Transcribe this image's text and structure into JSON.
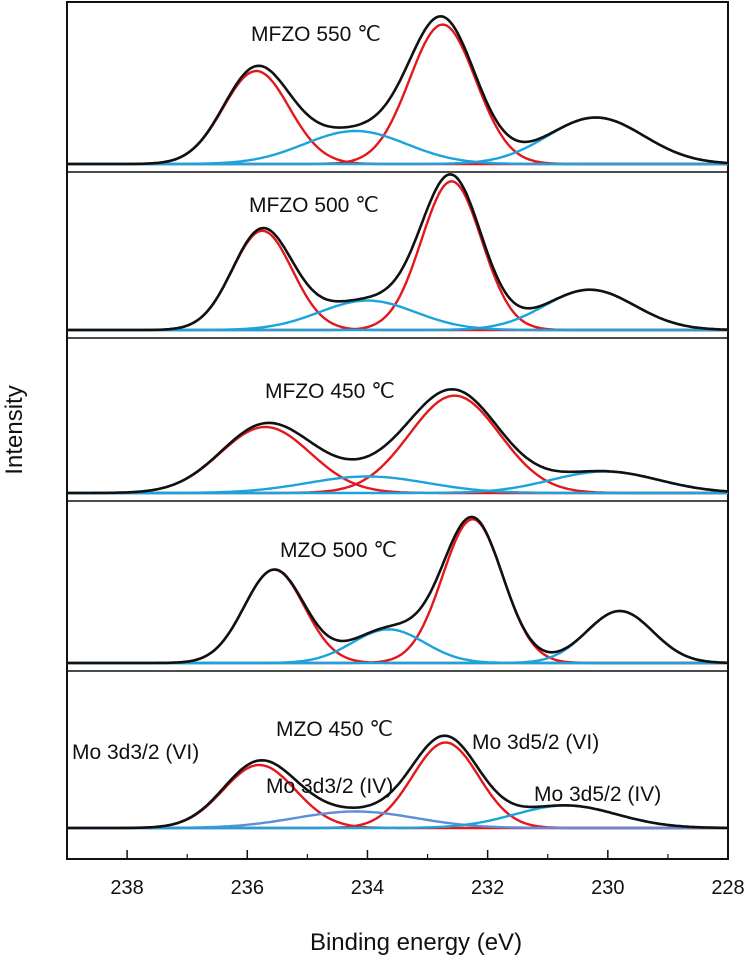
{
  "chart_data": {
    "type": "line",
    "title": "",
    "xlabel": "Binding energy (eV)",
    "ylabel": "Intensity",
    "xlim": [
      239,
      228
    ],
    "x_ticks": [
      238,
      236,
      234,
      232,
      230,
      228
    ],
    "colors": {
      "envelope": "#111111",
      "mo6": "#e3171c",
      "mo4": "#1ba3dc",
      "mo4_bottom": "#5b8ddb",
      "frame": "#111111"
    },
    "panels": [
      {
        "label": "MFZO 550 ℃",
        "components": [
          {
            "name": "Mo 3d3/2 (VI)",
            "center": 235.85,
            "height": 0.62,
            "width": 0.55,
            "color_key": "mo6"
          },
          {
            "name": "Mo 3d5/2 (VI)",
            "center": 232.75,
            "height": 0.93,
            "width": 0.55,
            "color_key": "mo6"
          },
          {
            "name": "Mo 3d3/2 (IV)",
            "center": 234.2,
            "height": 0.22,
            "width": 0.85,
            "color_key": "mo4"
          },
          {
            "name": "Mo 3d5/2 (IV)",
            "center": 230.2,
            "height": 0.31,
            "width": 0.8,
            "color_key": "mo4"
          }
        ]
      },
      {
        "label": "MFZO 500 ℃",
        "components": [
          {
            "name": "Mo 3d3/2 (VI)",
            "center": 235.75,
            "height": 0.64,
            "width": 0.5,
            "color_key": "mo6"
          },
          {
            "name": "Mo 3d5/2 (VI)",
            "center": 232.6,
            "height": 0.96,
            "width": 0.5,
            "color_key": "mo6"
          },
          {
            "name": "Mo 3d3/2 (IV)",
            "center": 234.0,
            "height": 0.19,
            "width": 0.8,
            "color_key": "mo4"
          },
          {
            "name": "Mo 3d5/2 (IV)",
            "center": 230.3,
            "height": 0.26,
            "width": 0.75,
            "color_key": "mo4"
          }
        ]
      },
      {
        "label": "MFZO 450 ℃",
        "components": [
          {
            "name": "Mo 3d3/2 (VI)",
            "center": 235.7,
            "height": 0.4,
            "width": 0.75,
            "color_key": "mo6"
          },
          {
            "name": "Mo 3d5/2 (VI)",
            "center": 232.55,
            "height": 0.59,
            "width": 0.75,
            "color_key": "mo6"
          },
          {
            "name": "Mo 3d3/2 (IV)",
            "center": 234.0,
            "height": 0.1,
            "width": 1.0,
            "color_key": "mo4"
          },
          {
            "name": "Mo 3d5/2 (IV)",
            "center": 230.05,
            "height": 0.13,
            "width": 0.9,
            "color_key": "mo4"
          }
        ]
      },
      {
        "label": "MZO 500 ℃",
        "components": [
          {
            "name": "Mo 3d3/2 (VI)",
            "center": 235.55,
            "height": 0.61,
            "width": 0.5,
            "color_key": "mo6"
          },
          {
            "name": "Mo 3d5/2 (VI)",
            "center": 232.25,
            "height": 0.94,
            "width": 0.5,
            "color_key": "mo6"
          },
          {
            "name": "Mo 3d3/2 (IV)",
            "center": 233.65,
            "height": 0.22,
            "width": 0.6,
            "color_key": "mo4"
          },
          {
            "name": "Mo 3d5/2 (IV)",
            "center": 229.8,
            "height": 0.34,
            "width": 0.55,
            "color_key": "mo4"
          }
        ]
      },
      {
        "label": "MZO 450 ℃",
        "components": [
          {
            "name": "Mo 3d3/2 (VI)",
            "center": 235.8,
            "height": 0.42,
            "width": 0.6,
            "color_key": "mo6"
          },
          {
            "name": "Mo 3d5/2 (VI)",
            "center": 232.7,
            "height": 0.57,
            "width": 0.55,
            "color_key": "mo6"
          },
          {
            "name": "Mo 3d3/2 (IV)",
            "center": 234.2,
            "height": 0.11,
            "width": 1.0,
            "color_key": "mo4_bottom"
          },
          {
            "name": "Mo 3d5/2 (IV)",
            "center": 230.7,
            "height": 0.15,
            "width": 0.85,
            "color_key": "mo4"
          }
        ]
      }
    ],
    "annotations": [
      {
        "text": "Mo 3d3/2 (VI)",
        "panel": 4,
        "near_energy": 235.8
      },
      {
        "text": "Mo 3d3/2 (IV)",
        "panel": 4,
        "near_energy": 234.2
      },
      {
        "text": "Mo 3d5/2 (VI)",
        "panel": 4,
        "near_energy": 232.7
      },
      {
        "text": "Mo 3d5/2 (IV)",
        "panel": 4,
        "near_energy": 230.7
      }
    ]
  }
}
